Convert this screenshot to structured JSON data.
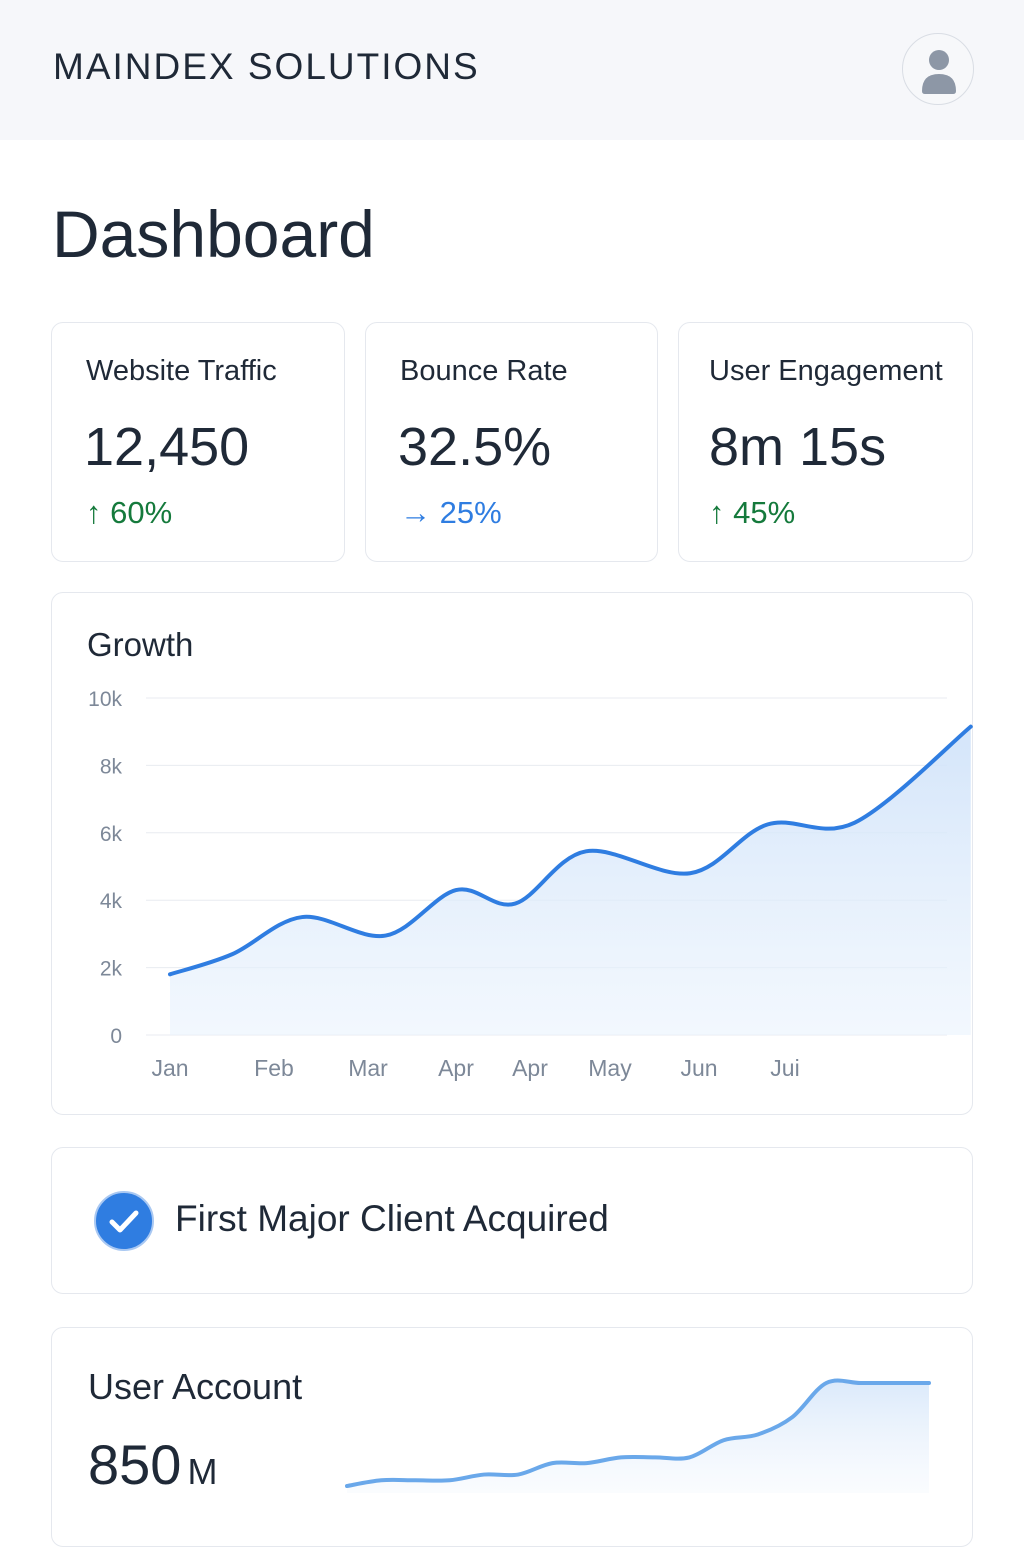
{
  "header": {
    "brand": "MAINDEX SOLUTIONS",
    "avatar_icon": "user-avatar-icon"
  },
  "page": {
    "title": "Dashboard"
  },
  "stats": [
    {
      "label": "Website Traffic",
      "value": "12,450",
      "change": "↑ 60%",
      "trend": "up",
      "color": "#157a3c"
    },
    {
      "label": "Bounce Rate",
      "value": "32.5%",
      "change": "→ 25%",
      "trend": "flat",
      "color": "#2f7de1"
    },
    {
      "label": "User Engagement",
      "value": "8m 15s",
      "change": "↑ 45%",
      "trend": "up",
      "color": "#157a3c"
    }
  ],
  "growth": {
    "title": "Growth",
    "chart_data": {
      "type": "area",
      "title": "Growth",
      "categories": [
        "Jan",
        "Feb",
        "Mar",
        "Apr",
        "Apr",
        "May",
        "Jun",
        "Jui"
      ],
      "y_ticks": [
        "0",
        "2k",
        "4k",
        "6k",
        "8k",
        "10k"
      ],
      "ylim": [
        0,
        10000
      ],
      "grid": true,
      "color": "#2f7de1",
      "points": [
        {
          "x": 0.0,
          "y": 1800
        },
        {
          "x": 0.6,
          "y": 2400
        },
        {
          "x": 1.3,
          "y": 3500
        },
        {
          "x": 2.2,
          "y": 2950
        },
        {
          "x": 3.0,
          "y": 4300
        },
        {
          "x": 3.8,
          "y": 3900
        },
        {
          "x": 4.7,
          "y": 5450
        },
        {
          "x": 5.9,
          "y": 4800
        },
        {
          "x": 6.8,
          "y": 6250
        },
        {
          "x": 7.6,
          "y": 6300
        },
        {
          "x": 8.6,
          "y": 9150
        }
      ]
    }
  },
  "milestone": {
    "label": "First Major Client Acquired",
    "icon": "check-circle-icon",
    "color": "#2f7de1"
  },
  "account": {
    "title": "User Account",
    "value": "850",
    "unit": "M",
    "sparkline": {
      "type": "area",
      "color": "#6aa8ea",
      "values": [
        1,
        2,
        2,
        2,
        3,
        3,
        5,
        5,
        6,
        6,
        6,
        9,
        10,
        13,
        19,
        19,
        19,
        19
      ]
    }
  }
}
